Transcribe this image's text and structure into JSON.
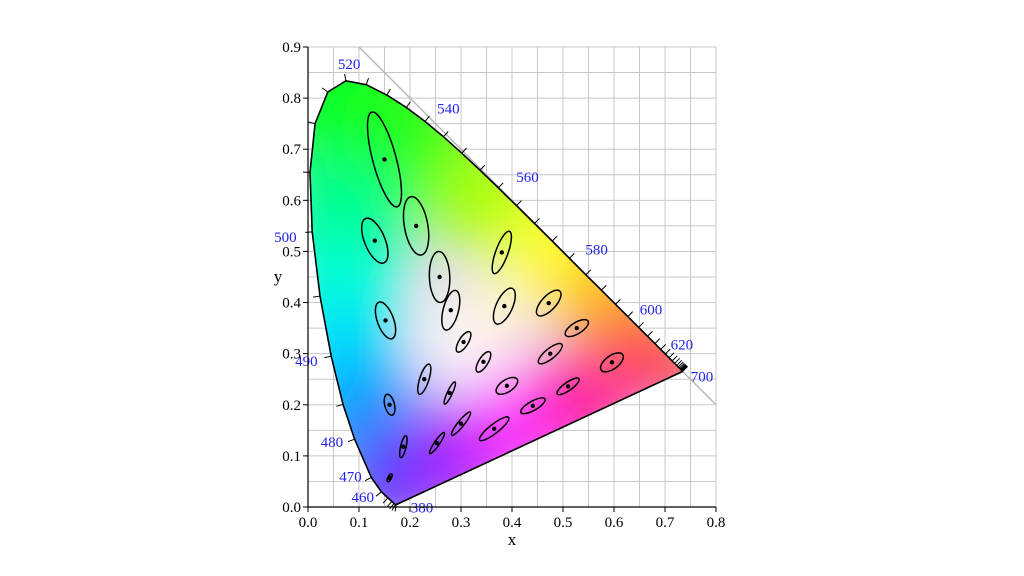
{
  "chart_data": {
    "type": "scatter",
    "xlabel": "x",
    "ylabel": "y",
    "xlim": [
      0.0,
      0.8
    ],
    "ylim": [
      0.0,
      0.9
    ],
    "x_ticks": [
      "0.0",
      "0.1",
      "0.2",
      "0.3",
      "0.4",
      "0.5",
      "0.6",
      "0.7",
      "0.8"
    ],
    "y_ticks": [
      "0.0",
      "0.1",
      "0.2",
      "0.3",
      "0.4",
      "0.5",
      "0.6",
      "0.7",
      "0.8",
      "0.9"
    ],
    "grid": true,
    "colors": {
      "grid": "#c8c8c8",
      "wavelength_label": "#2222ee",
      "outline": "#000000",
      "purple_line_end": "#e8137a"
    },
    "spectral_locus": [
      [
        0.1741,
        0.005
      ],
      [
        0.1738,
        0.0049
      ],
      [
        0.1736,
        0.0048
      ],
      [
        0.1727,
        0.0048
      ],
      [
        0.1714,
        0.0051
      ],
      [
        0.1689,
        0.0069
      ],
      [
        0.1644,
        0.0109
      ],
      [
        0.1566,
        0.0177
      ],
      [
        0.144,
        0.0297
      ],
      [
        0.1241,
        0.0578
      ],
      [
        0.0913,
        0.1327
      ],
      [
        0.0687,
        0.2007
      ],
      [
        0.0454,
        0.295
      ],
      [
        0.0235,
        0.4127
      ],
      [
        0.0082,
        0.5384
      ],
      [
        0.0039,
        0.6548
      ],
      [
        0.0139,
        0.7502
      ],
      [
        0.0389,
        0.812
      ],
      [
        0.0743,
        0.8338
      ],
      [
        0.1142,
        0.8262
      ],
      [
        0.1547,
        0.8059
      ],
      [
        0.1929,
        0.7816
      ],
      [
        0.2296,
        0.7543
      ],
      [
        0.2658,
        0.7243
      ],
      [
        0.3016,
        0.6923
      ],
      [
        0.3373,
        0.6589
      ],
      [
        0.3731,
        0.6245
      ],
      [
        0.4087,
        0.5896
      ],
      [
        0.4441,
        0.5547
      ],
      [
        0.4788,
        0.5202
      ],
      [
        0.5125,
        0.4866
      ],
      [
        0.5448,
        0.4544
      ],
      [
        0.5752,
        0.4242
      ],
      [
        0.6029,
        0.3965
      ],
      [
        0.627,
        0.3725
      ],
      [
        0.6482,
        0.3514
      ],
      [
        0.6658,
        0.334
      ],
      [
        0.6801,
        0.3197
      ],
      [
        0.6915,
        0.3083
      ],
      [
        0.7006,
        0.2993
      ],
      [
        0.7079,
        0.292
      ],
      [
        0.714,
        0.2859
      ],
      [
        0.719,
        0.2809
      ],
      [
        0.723,
        0.277
      ],
      [
        0.726,
        0.274
      ],
      [
        0.7283,
        0.2717
      ],
      [
        0.73,
        0.27
      ],
      [
        0.7311,
        0.2689
      ],
      [
        0.732,
        0.268
      ],
      [
        0.7327,
        0.2673
      ],
      [
        0.7334,
        0.2666
      ],
      [
        0.734,
        0.266
      ],
      [
        0.7344,
        0.2656
      ],
      [
        0.7346,
        0.2654
      ],
      [
        0.7347,
        0.2653
      ]
    ],
    "wavelength_labels": [
      {
        "text": "380",
        "x": 0.1741,
        "y": 0.005
      },
      {
        "text": "460",
        "x": 0.144,
        "y": 0.0297
      },
      {
        "text": "470",
        "x": 0.1241,
        "y": 0.0578
      },
      {
        "text": "480",
        "x": 0.0913,
        "y": 0.1327
      },
      {
        "text": "490",
        "x": 0.0454,
        "y": 0.295
      },
      {
        "text": "500",
        "x": 0.0082,
        "y": 0.5384
      },
      {
        "text": "520",
        "x": 0.0743,
        "y": 0.8338
      },
      {
        "text": "540",
        "x": 0.2296,
        "y": 0.7543
      },
      {
        "text": "560",
        "x": 0.3731,
        "y": 0.6245
      },
      {
        "text": "580",
        "x": 0.5125,
        "y": 0.4866
      },
      {
        "text": "600",
        "x": 0.627,
        "y": 0.3725
      },
      {
        "text": "620",
        "x": 0.6915,
        "y": 0.3083
      },
      {
        "text": "700",
        "x": 0.7347,
        "y": 0.2653
      }
    ],
    "ellipses": [
      {
        "x": 0.16,
        "y": 0.057,
        "a": 0.0085,
        "b": 0.0035,
        "angle": 62.5
      },
      {
        "x": 0.187,
        "y": 0.118,
        "a": 0.022,
        "b": 0.0055,
        "angle": 77
      },
      {
        "x": 0.253,
        "y": 0.125,
        "a": 0.025,
        "b": 0.005,
        "angle": 55.5
      },
      {
        "x": 0.15,
        "y": 0.68,
        "a": 0.096,
        "b": 0.023,
        "angle": 105
      },
      {
        "x": 0.131,
        "y": 0.521,
        "a": 0.047,
        "b": 0.02,
        "angle": 112.5
      },
      {
        "x": 0.212,
        "y": 0.55,
        "a": 0.058,
        "b": 0.023,
        "angle": 100
      },
      {
        "x": 0.258,
        "y": 0.45,
        "a": 0.05,
        "b": 0.02,
        "angle": 92
      },
      {
        "x": 0.152,
        "y": 0.365,
        "a": 0.038,
        "b": 0.016,
        "angle": 110
      },
      {
        "x": 0.28,
        "y": 0.385,
        "a": 0.04,
        "b": 0.015,
        "angle": 75.5
      },
      {
        "x": 0.38,
        "y": 0.498,
        "a": 0.044,
        "b": 0.012,
        "angle": 70
      },
      {
        "x": 0.16,
        "y": 0.2,
        "a": 0.021,
        "b": 0.0095,
        "angle": 104
      },
      {
        "x": 0.228,
        "y": 0.25,
        "a": 0.031,
        "b": 0.009,
        "angle": 72
      },
      {
        "x": 0.305,
        "y": 0.323,
        "a": 0.023,
        "b": 0.009,
        "angle": 58
      },
      {
        "x": 0.385,
        "y": 0.393,
        "a": 0.038,
        "b": 0.016,
        "angle": 65.5
      },
      {
        "x": 0.472,
        "y": 0.399,
        "a": 0.032,
        "b": 0.014,
        "angle": 47
      },
      {
        "x": 0.51,
        "y": 0.236,
        "a": 0.026,
        "b": 0.008,
        "angle": 35
      },
      {
        "x": 0.596,
        "y": 0.283,
        "a": 0.026,
        "b": 0.013,
        "angle": 36
      },
      {
        "x": 0.344,
        "y": 0.284,
        "a": 0.023,
        "b": 0.009,
        "angle": 58
      },
      {
        "x": 0.39,
        "y": 0.237,
        "a": 0.024,
        "b": 0.012,
        "angle": 33
      },
      {
        "x": 0.441,
        "y": 0.198,
        "a": 0.027,
        "b": 0.009,
        "angle": 29.5
      },
      {
        "x": 0.278,
        "y": 0.223,
        "a": 0.024,
        "b": 0.005,
        "angle": 65
      },
      {
        "x": 0.3,
        "y": 0.163,
        "a": 0.029,
        "b": 0.006,
        "angle": 51
      },
      {
        "x": 0.365,
        "y": 0.153,
        "a": 0.036,
        "b": 0.009,
        "angle": 38
      },
      {
        "x": 0.475,
        "y": 0.3,
        "a": 0.029,
        "b": 0.01,
        "angle": 39
      },
      {
        "x": 0.527,
        "y": 0.35,
        "a": 0.026,
        "b": 0.011,
        "angle": 32
      }
    ]
  }
}
